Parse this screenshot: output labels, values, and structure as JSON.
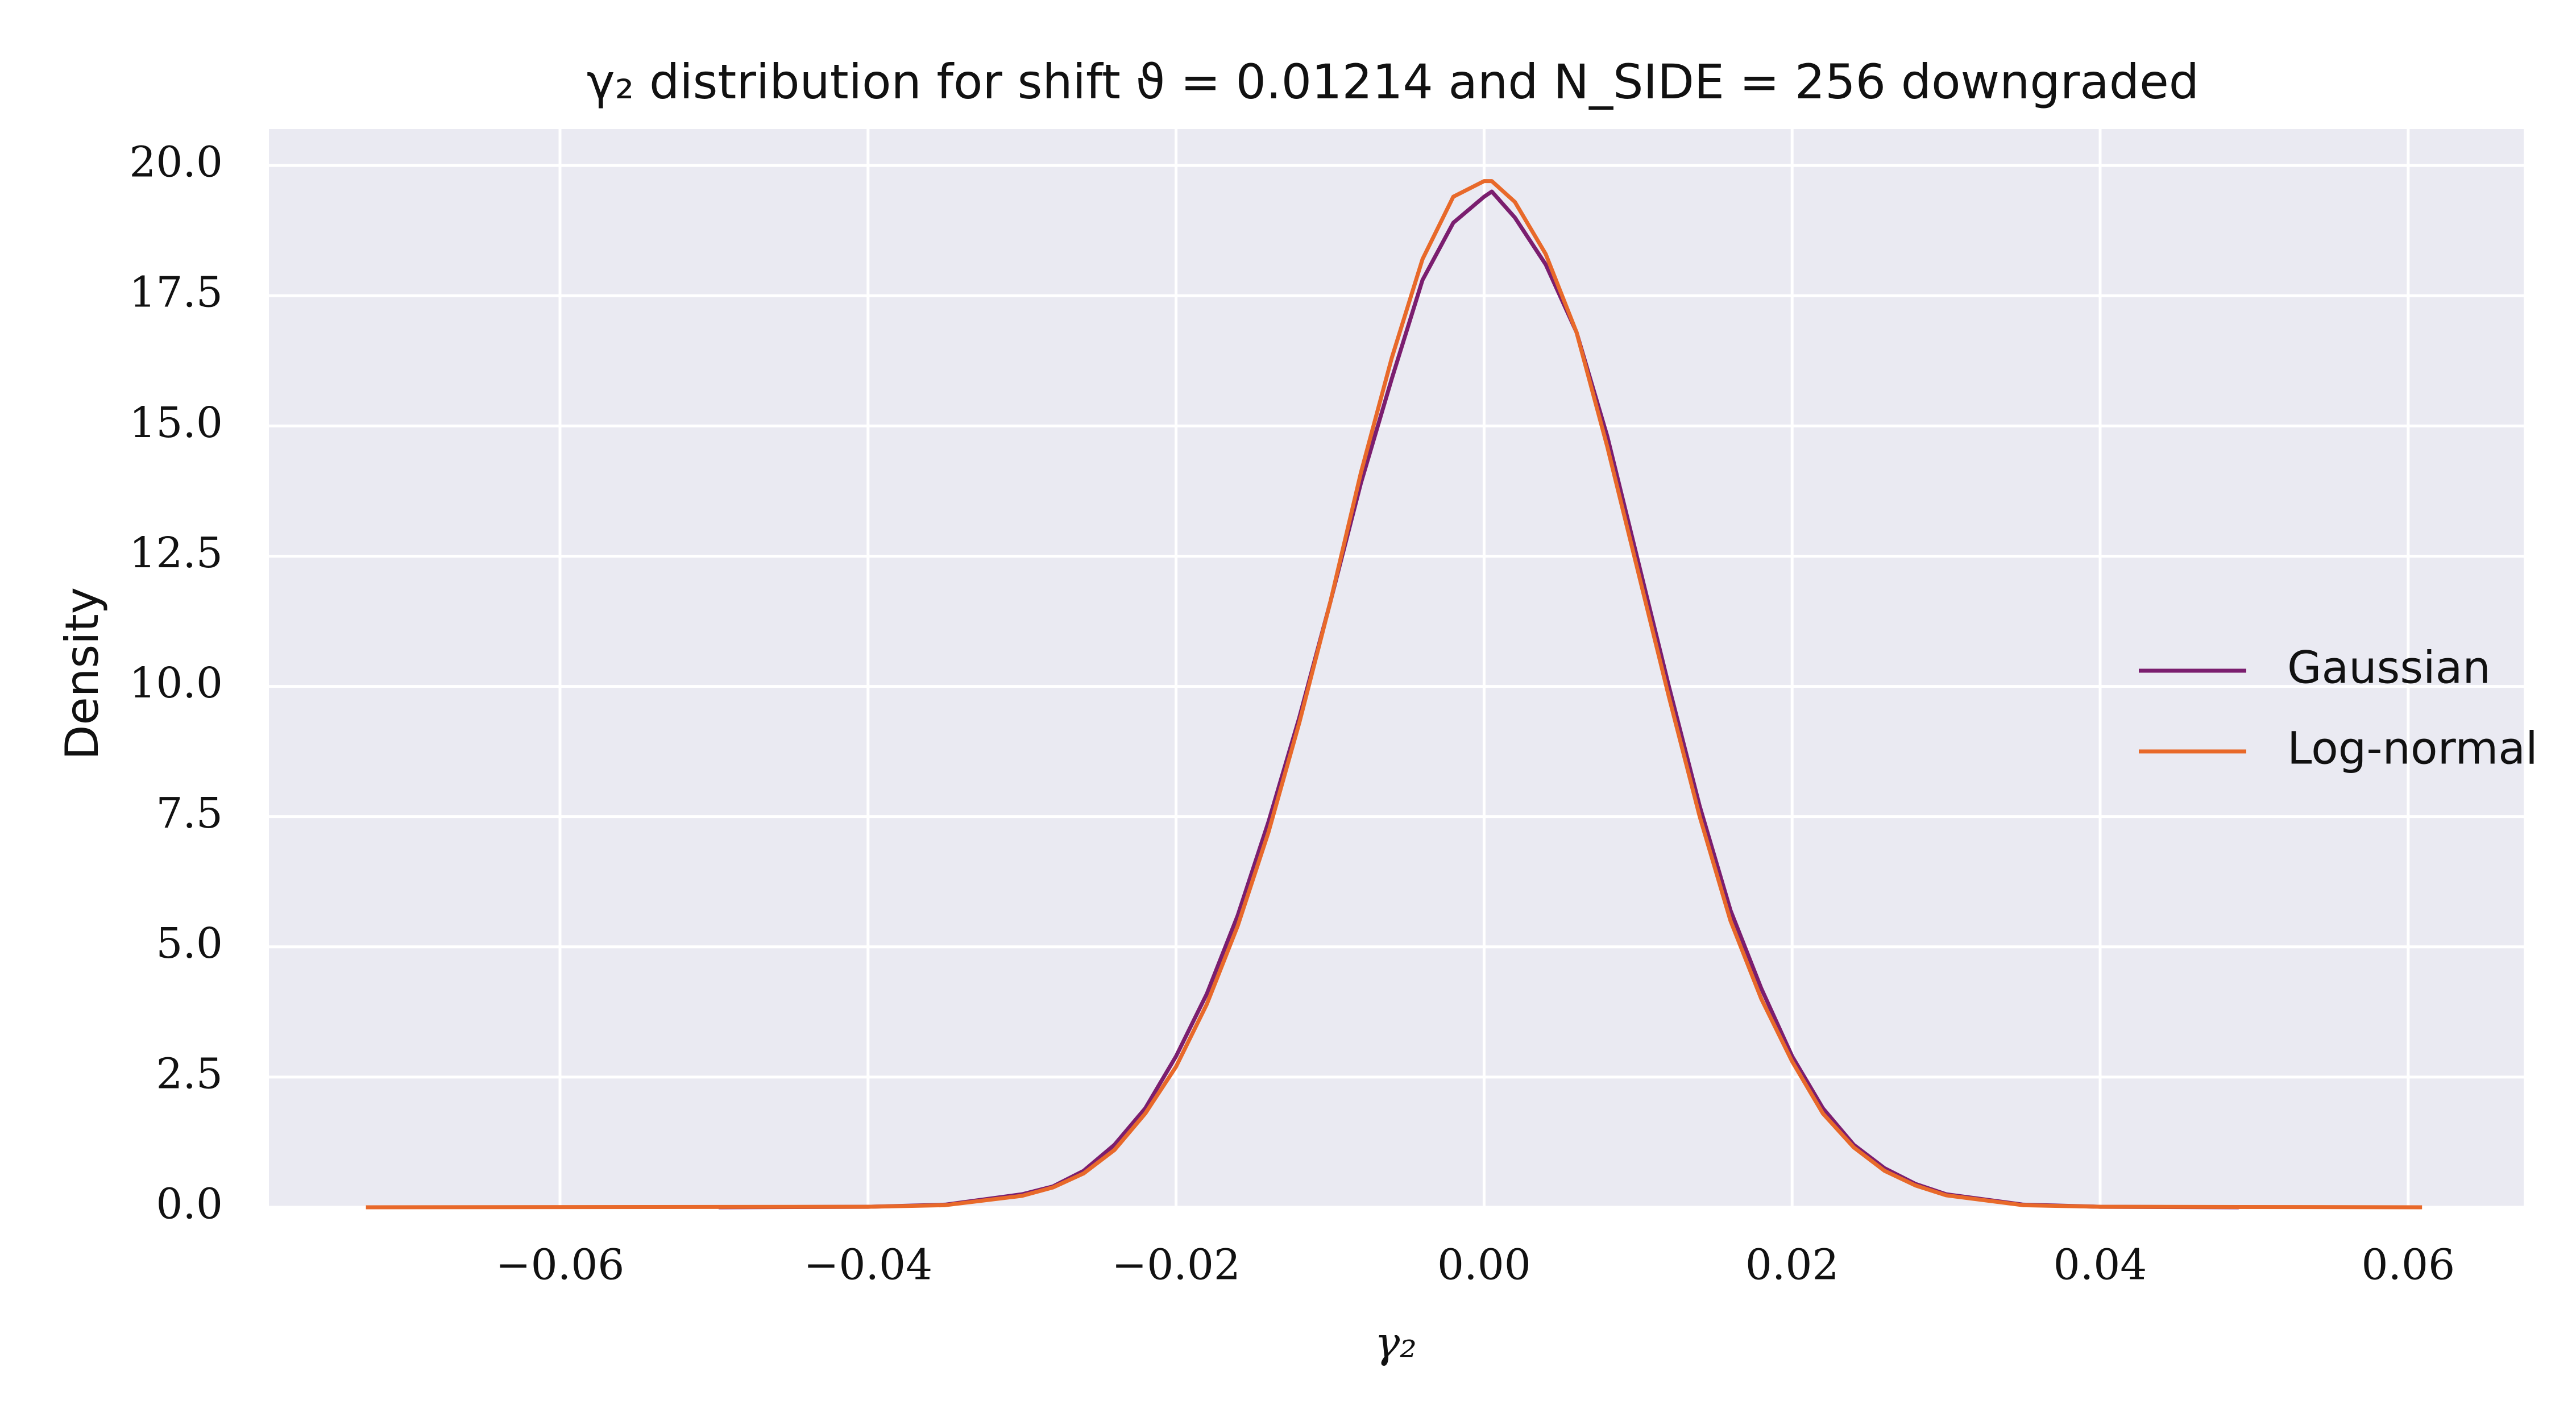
{
  "chart_data": {
    "type": "line",
    "title": "γ₂ distribution for shift ϑ = 0.01214 and N_SIDE = 256 downgraded",
    "x_label": "γ₂",
    "y_label": "Density",
    "xlim": [
      -0.0789,
      0.0675
    ],
    "ylim": [
      0,
      20.7
    ],
    "xticks": [
      {
        "value": -0.06,
        "label": "−0.06"
      },
      {
        "value": -0.04,
        "label": "−0.04"
      },
      {
        "value": -0.02,
        "label": "−0.02"
      },
      {
        "value": 0,
        "label": "0.00"
      },
      {
        "value": 0.02,
        "label": "0.02"
      },
      {
        "value": 0.04,
        "label": "0.04"
      },
      {
        "value": 0.06,
        "label": "0.06"
      }
    ],
    "yticks": [
      {
        "value": 0,
        "label": "0.0"
      },
      2.5,
      {
        "value": 5,
        "label": "5.0"
      },
      7.5,
      {
        "value": 10,
        "label": "10.0"
      },
      12.5,
      {
        "value": 15,
        "label": "15.0"
      },
      17.5,
      {
        "value": 20,
        "label": "20.0"
      }
    ],
    "grid": true,
    "legend": "right",
    "series": [
      {
        "name": "Gaussian",
        "color": "#7b1e6f",
        "x": [
          -0.0497,
          -0.04,
          -0.035,
          -0.03,
          -0.028,
          -0.026,
          -0.024,
          -0.022,
          -0.02,
          -0.018,
          -0.016,
          -0.014,
          -0.012,
          -0.01,
          -0.008,
          -0.006,
          -0.004,
          -0.002,
          0,
          0.0005,
          0.002,
          0.004,
          0.006,
          0.008,
          0.01,
          0.012,
          0.014,
          0.016,
          0.018,
          0.02,
          0.022,
          0.024,
          0.026,
          0.028,
          0.03,
          0.035,
          0.04,
          0.049
        ],
        "values": [
          0,
          0.01,
          0.05,
          0.25,
          0.4,
          0.7,
          1.2,
          1.9,
          2.9,
          4.1,
          5.6,
          7.4,
          9.4,
          11.6,
          13.9,
          15.9,
          17.8,
          18.9,
          19.4,
          19.5,
          19.0,
          18.1,
          16.8,
          14.8,
          12.4,
          10.0,
          7.7,
          5.7,
          4.2,
          2.9,
          1.9,
          1.2,
          0.75,
          0.45,
          0.25,
          0.05,
          0.01,
          0
        ]
      },
      {
        "name": "Log-normal",
        "color": "#e8692a",
        "x": [
          -0.0726,
          -0.04,
          -0.035,
          -0.03,
          -0.028,
          -0.026,
          -0.024,
          -0.022,
          -0.02,
          -0.018,
          -0.016,
          -0.014,
          -0.012,
          -0.01,
          -0.008,
          -0.006,
          -0.004,
          -0.002,
          0,
          0.0005,
          0.002,
          0.004,
          0.006,
          0.008,
          0.01,
          0.012,
          0.014,
          0.016,
          0.018,
          0.02,
          0.022,
          0.024,
          0.026,
          0.028,
          0.03,
          0.035,
          0.04,
          0.0609
        ],
        "values": [
          0,
          0.01,
          0.04,
          0.22,
          0.38,
          0.65,
          1.1,
          1.8,
          2.7,
          3.9,
          5.4,
          7.2,
          9.3,
          11.6,
          14.1,
          16.3,
          18.2,
          19.4,
          19.7,
          19.7,
          19.3,
          18.3,
          16.8,
          14.6,
          12.2,
          9.8,
          7.5,
          5.5,
          4.0,
          2.8,
          1.8,
          1.15,
          0.7,
          0.42,
          0.23,
          0.04,
          0.01,
          0
        ]
      }
    ]
  }
}
